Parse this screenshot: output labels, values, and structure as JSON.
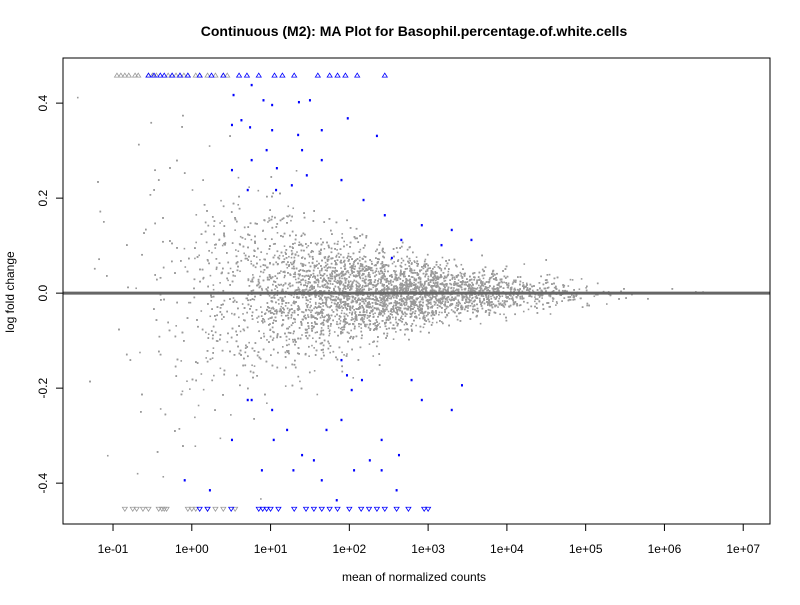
{
  "chart_data": {
    "type": "scatter",
    "title": "Continuous (M2): MA Plot for Basophil.percentage.of.white.cells",
    "xlabel": "mean of normalized counts",
    "ylabel": "log fold change",
    "x_scale": "log10",
    "xlim_log10": [
      -1.635,
      7.34
    ],
    "ylim": [
      -0.486,
      0.495
    ],
    "x_ticks": [
      {
        "log10": -1,
        "label": "1e-01"
      },
      {
        "log10": 0,
        "label": "1e+00"
      },
      {
        "log10": 1,
        "label": "1e+01"
      },
      {
        "log10": 2,
        "label": "1e+02"
      },
      {
        "log10": 3,
        "label": "1e+03"
      },
      {
        "log10": 4,
        "label": "1e+04"
      },
      {
        "log10": 5,
        "label": "1e+05"
      },
      {
        "log10": 6,
        "label": "1e+06"
      },
      {
        "log10": 7,
        "label": "1e+07"
      }
    ],
    "y_ticks": [
      {
        "value": 0.4,
        "label": "0.4"
      },
      {
        "value": 0.2,
        "label": "0.2"
      },
      {
        "value": 0.0,
        "label": "0.0"
      },
      {
        "value": -0.2,
        "label": "-0.2"
      },
      {
        "value": -0.4,
        "label": "-0.4"
      }
    ],
    "reference_line_y": 0,
    "colors": {
      "nonsignificant": "#9a9a9a",
      "significant": "#0000ff",
      "reference_line": "#666666"
    },
    "nonsignificant_model": {
      "note_count": 9000,
      "log10_mean_center": 2.3,
      "log10_mean_sd": 1.15,
      "lfc_sd_at_log10_0": 0.14,
      "lfc_sd_decay_per_decade": 0.62,
      "seed": 7
    },
    "significant_points": [
      [
        0.53,
        0.417
      ],
      [
        0.76,
        0.438
      ],
      [
        0.91,
        0.406
      ],
      [
        1.02,
        0.396
      ],
      [
        1.36,
        0.402
      ],
      [
        1.5,
        0.406
      ],
      [
        0.51,
        0.354
      ],
      [
        0.63,
        0.364
      ],
      [
        0.74,
        0.349
      ],
      [
        1.02,
        0.343
      ],
      [
        1.35,
        0.333
      ],
      [
        1.65,
        0.343
      ],
      [
        1.98,
        0.368
      ],
      [
        0.51,
        0.259
      ],
      [
        0.76,
        0.28
      ],
      [
        0.95,
        0.301
      ],
      [
        1.08,
        0.263
      ],
      [
        1.27,
        0.227
      ],
      [
        1.46,
        0.248
      ],
      [
        1.9,
        0.238
      ],
      [
        2.18,
        0.196
      ],
      [
        2.45,
        0.164
      ],
      [
        0.71,
        0.217
      ],
      [
        1.07,
        0.217
      ],
      [
        2.66,
        0.112
      ],
      [
        2.92,
        0.143
      ],
      [
        3.3,
        0.133
      ],
      [
        2.35,
        0.331
      ],
      [
        1.65,
        0.28
      ],
      [
        1.4,
        0.301
      ],
      [
        2.54,
        0.074
      ],
      [
        3.17,
        0.101
      ],
      [
        3.55,
        0.112
      ],
      [
        -0.09,
        -0.394
      ],
      [
        0.23,
        -0.415
      ],
      [
        0.51,
        -0.309
      ],
      [
        0.71,
        -0.225
      ],
      [
        1.02,
        -0.246
      ],
      [
        1.04,
        -0.309
      ],
      [
        1.21,
        -0.288
      ],
      [
        1.4,
        -0.341
      ],
      [
        1.55,
        -0.352
      ],
      [
        1.71,
        -0.288
      ],
      [
        1.9,
        -0.267
      ],
      [
        2.03,
        -0.204
      ],
      [
        2.16,
        -0.183
      ],
      [
        2.26,
        -0.352
      ],
      [
        2.41,
        -0.309
      ],
      [
        2.63,
        -0.341
      ],
      [
        2.79,
        -0.183
      ],
      [
        2.92,
        -0.225
      ],
      [
        3.3,
        -0.246
      ],
      [
        3.43,
        -0.194
      ],
      [
        1.84,
        -0.436
      ],
      [
        1.65,
        -0.394
      ],
      [
        1.29,
        -0.373
      ],
      [
        0.89,
        -0.373
      ],
      [
        0.76,
        -0.225
      ],
      [
        2.06,
        -0.373
      ],
      [
        2.6,
        -0.415
      ],
      [
        2.41,
        -0.373
      ],
      [
        1.9,
        -0.141
      ],
      [
        1.97,
        -0.173
      ]
    ],
    "clipped_top": {
      "y": 0.459,
      "gray_log10": [
        -0.95,
        -0.9,
        -0.85,
        -0.8,
        -0.72,
        -0.68,
        -0.55,
        -0.5,
        -0.45,
        -0.3,
        -0.25,
        -0.2,
        -0.15,
        -0.1,
        -0.05,
        0.05,
        0.1,
        0.2,
        0.3,
        0.4,
        0.45
      ],
      "blue_log10": [
        -0.55,
        -0.48,
        -0.4,
        -0.35,
        -0.25,
        -0.15,
        -0.05,
        0.1,
        0.25,
        0.4,
        0.6,
        0.7,
        0.85,
        1.05,
        1.15,
        1.3,
        1.6,
        1.75,
        1.85,
        1.95,
        2.1,
        2.45
      ]
    },
    "clipped_bottom": {
      "y": -0.455,
      "gray_log10": [
        -0.85,
        -0.75,
        -0.7,
        -0.62,
        -0.55,
        -0.42,
        -0.38,
        -0.35,
        -0.32,
        -0.05,
        0.0,
        0.05,
        0.2,
        0.3,
        0.4,
        0.55
      ],
      "blue_log10": [
        0.1,
        0.2,
        0.5,
        0.85,
        0.9,
        0.95,
        1.0,
        1.1,
        1.3,
        1.45,
        1.55,
        1.65,
        1.75,
        1.85,
        2.0,
        2.15,
        2.25,
        2.35,
        2.45,
        2.6,
        2.75,
        2.95,
        3.0
      ]
    }
  }
}
